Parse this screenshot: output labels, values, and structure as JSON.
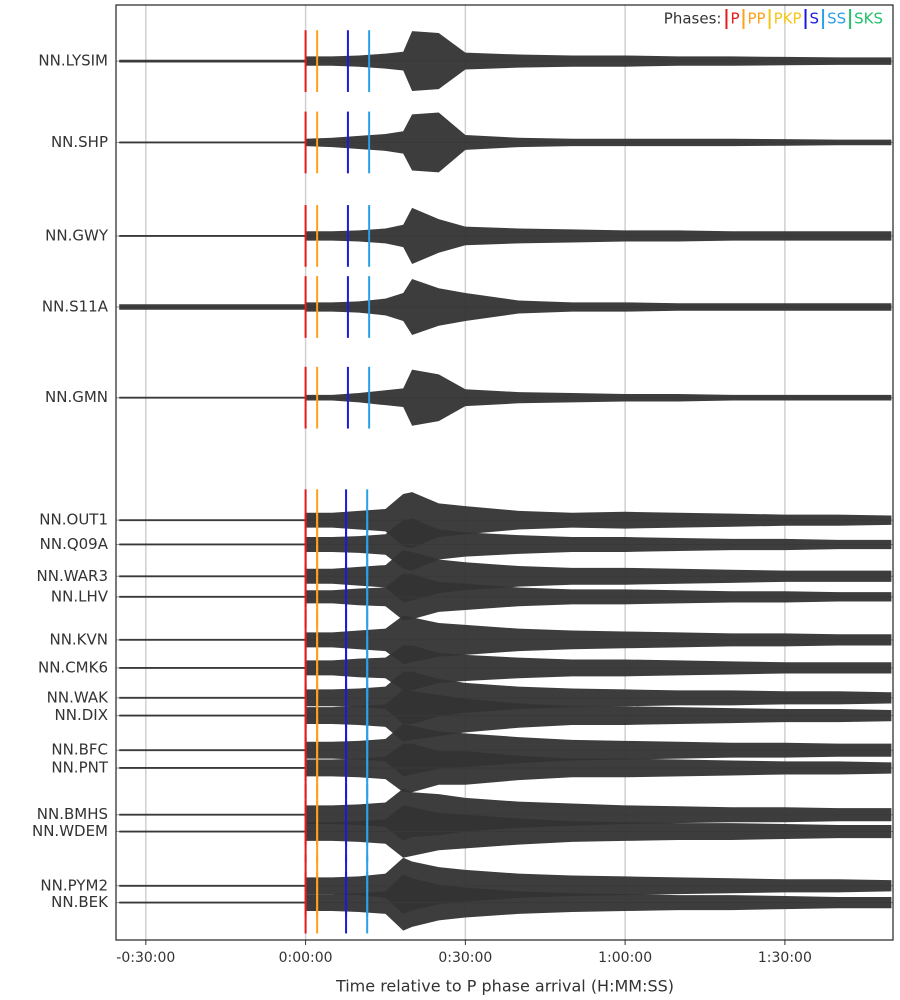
{
  "chart_data": {
    "type": "record-section",
    "xlabel": "Time relative to P phase arrival (H:MM:SS)",
    "xlim": [
      -2136,
      6618
    ],
    "xticks": [
      {
        "value": -1800,
        "label": "-0:30:00"
      },
      {
        "value": 0,
        "label": "0:00:00"
      },
      {
        "value": 1800,
        "label": "0:30:00"
      },
      {
        "value": 3600,
        "label": "1:00:00"
      },
      {
        "value": 5400,
        "label": "1:30:00"
      }
    ],
    "ylim": [
      0,
      100
    ],
    "grid": true,
    "trace_color": "#333333",
    "legend_title": "Phases:",
    "phases": [
      {
        "name": "P",
        "color": "#e41a1c"
      },
      {
        "name": "PP",
        "color": "#ff9f1a"
      },
      {
        "name": "PKP",
        "color": "#f5c518"
      },
      {
        "name": "S",
        "color": "#1a1adb"
      },
      {
        "name": "SS",
        "color": "#2aa0e8"
      },
      {
        "name": "SKS",
        "color": "#22c06a"
      }
    ],
    "x": [
      -2100,
      -10,
      0,
      300,
      600,
      900,
      1100,
      1200,
      1500,
      1800,
      2400,
      3000,
      3600,
      4200,
      4800,
      5400,
      6000,
      6600
    ],
    "stations": [
      {
        "name": "NN.LYSIM",
        "y": 6.0,
        "arrivals": [
          0,
          130,
          null,
          477,
          716,
          null
        ],
        "values": [
          0.15,
          0.15,
          0.5,
          0.5,
          0.6,
          0.8,
          1.0,
          3.2,
          3.0,
          0.9,
          0.7,
          0.6,
          0.6,
          0.5,
          0.5,
          0.45,
          0.4,
          0.4
        ]
      },
      {
        "name": "NN.SHP",
        "y": 14.7,
        "arrivals": [
          0,
          130,
          null,
          477,
          716,
          null
        ],
        "values": [
          0.1,
          0.1,
          0.4,
          0.5,
          0.7,
          0.9,
          1.2,
          3.0,
          3.2,
          0.8,
          0.5,
          0.4,
          0.4,
          0.4,
          0.4,
          0.35,
          0.3,
          0.3
        ]
      },
      {
        "name": "NN.GWY",
        "y": 24.7,
        "arrivals": [
          0,
          130,
          null,
          477,
          716,
          null
        ],
        "values": [
          0.1,
          0.1,
          0.5,
          0.5,
          0.6,
          0.8,
          1.2,
          3.0,
          1.8,
          1.0,
          0.8,
          0.7,
          0.6,
          0.6,
          0.5,
          0.5,
          0.5,
          0.5
        ]
      },
      {
        "name": "NN.S11A",
        "y": 32.3,
        "arrivals": [
          0,
          130,
          null,
          477,
          716,
          null
        ],
        "values": [
          0.3,
          0.3,
          0.5,
          0.5,
          0.6,
          0.9,
          1.5,
          3.0,
          2.0,
          1.5,
          0.7,
          0.5,
          0.5,
          0.4,
          0.4,
          0.4,
          0.4,
          0.4
        ]
      },
      {
        "name": "NN.GMN",
        "y": 42.0,
        "arrivals": [
          0,
          130,
          null,
          477,
          716,
          null
        ],
        "values": [
          0.1,
          0.1,
          0.3,
          0.3,
          0.5,
          0.8,
          1.0,
          3.0,
          2.5,
          0.9,
          0.6,
          0.5,
          0.4,
          0.4,
          0.3,
          0.3,
          0.3,
          0.3
        ]
      },
      {
        "name": "NN.OUT1",
        "y": 55.1,
        "arrivals": [
          0,
          130,
          null,
          456,
          694,
          null
        ],
        "values": [
          0.1,
          0.1,
          0.8,
          0.8,
          1.0,
          1.2,
          2.8,
          3.0,
          1.8,
          1.5,
          1.0,
          0.8,
          0.9,
          0.8,
          0.7,
          0.6,
          0.6,
          0.5
        ]
      },
      {
        "name": "NN.Q09A",
        "y": 57.7,
        "arrivals": [
          0,
          130,
          null,
          456,
          694,
          null
        ],
        "values": [
          0.1,
          0.1,
          0.8,
          0.8,
          0.9,
          1.1,
          2.6,
          2.8,
          1.6,
          1.3,
          1.0,
          0.8,
          0.8,
          0.7,
          0.6,
          0.6,
          0.5,
          0.5
        ]
      },
      {
        "name": "NN.WAR3",
        "y": 61.1,
        "arrivals": [
          0,
          130,
          null,
          456,
          694,
          null
        ],
        "values": [
          0.1,
          0.1,
          0.8,
          0.8,
          1.0,
          1.2,
          2.8,
          2.6,
          1.8,
          1.5,
          1.1,
          0.9,
          0.9,
          0.8,
          0.7,
          0.6,
          0.6,
          0.6
        ]
      },
      {
        "name": "NN.LHV",
        "y": 63.3,
        "arrivals": [
          0,
          130,
          null,
          456,
          694,
          null
        ],
        "values": [
          0.1,
          0.1,
          0.7,
          0.7,
          0.9,
          1.0,
          2.5,
          2.4,
          1.6,
          1.4,
          1.0,
          0.8,
          0.8,
          0.7,
          0.6,
          0.6,
          0.5,
          0.5
        ]
      },
      {
        "name": "NN.KVN",
        "y": 67.9,
        "arrivals": [
          0,
          130,
          null,
          456,
          694,
          null
        ],
        "values": [
          0.1,
          0.1,
          0.8,
          0.8,
          1.0,
          1.2,
          2.6,
          2.4,
          1.8,
          1.6,
          1.2,
          1.0,
          0.9,
          0.8,
          0.7,
          0.7,
          0.6,
          0.6
        ]
      },
      {
        "name": "NN.CMK6",
        "y": 70.9,
        "arrivals": [
          0,
          130,
          null,
          456,
          694,
          null
        ],
        "values": [
          0.1,
          0.1,
          0.8,
          0.8,
          1.0,
          1.1,
          2.4,
          2.4,
          1.6,
          1.4,
          1.1,
          0.9,
          0.9,
          0.8,
          0.7,
          0.6,
          0.6,
          0.6
        ]
      },
      {
        "name": "NN.WAK",
        "y": 74.1,
        "arrivals": [
          0,
          130,
          null,
          456,
          694,
          null
        ],
        "values": [
          0.1,
          0.1,
          0.9,
          0.9,
          1.0,
          1.2,
          2.8,
          2.8,
          2.0,
          1.6,
          1.2,
          1.0,
          0.9,
          0.8,
          0.8,
          0.7,
          0.7,
          0.6
        ]
      },
      {
        "name": "NN.DIX",
        "y": 76.0,
        "arrivals": [
          0,
          130,
          null,
          456,
          694,
          null
        ],
        "values": [
          0.1,
          0.1,
          0.9,
          0.9,
          1.0,
          1.2,
          2.8,
          2.6,
          2.2,
          1.8,
          1.3,
          1.0,
          1.0,
          0.9,
          0.8,
          0.7,
          0.7,
          0.6
        ]
      },
      {
        "name": "NN.BFC",
        "y": 79.7,
        "arrivals": [
          0,
          130,
          null,
          456,
          694,
          null
        ],
        "values": [
          0.1,
          0.1,
          0.9,
          0.9,
          1.0,
          1.2,
          2.8,
          2.6,
          2.0,
          1.8,
          1.4,
          1.1,
          1.0,
          0.9,
          0.8,
          0.8,
          0.7,
          0.7
        ]
      },
      {
        "name": "NN.PNT",
        "y": 81.6,
        "arrivals": [
          0,
          130,
          null,
          456,
          694,
          null
        ],
        "values": [
          0.1,
          0.1,
          0.9,
          0.9,
          1.0,
          1.2,
          2.6,
          2.6,
          1.8,
          1.8,
          1.3,
          1.0,
          1.0,
          0.9,
          0.8,
          0.7,
          0.7,
          0.6
        ]
      },
      {
        "name": "NN.BMHS",
        "y": 86.6,
        "arrivals": [
          0,
          130,
          null,
          456,
          694,
          null
        ],
        "values": [
          0.1,
          0.1,
          1.0,
          1.0,
          1.1,
          1.3,
          2.8,
          2.4,
          2.2,
          1.8,
          1.4,
          1.2,
          1.0,
          0.9,
          0.8,
          0.8,
          0.7,
          0.7
        ]
      },
      {
        "name": "NN.WDEM",
        "y": 88.4,
        "arrivals": [
          0,
          130,
          null,
          456,
          694,
          null
        ],
        "values": [
          0.1,
          0.1,
          1.0,
          1.0,
          1.1,
          1.3,
          2.8,
          2.6,
          2.0,
          1.8,
          1.4,
          1.1,
          1.0,
          0.9,
          0.9,
          0.8,
          0.7,
          0.7
        ]
      },
      {
        "name": "NN.PYM2",
        "y": 94.2,
        "arrivals": [
          0,
          130,
          null,
          456,
          694,
          null
        ],
        "values": [
          0.1,
          0.1,
          0.9,
          0.9,
          1.0,
          1.3,
          3.0,
          2.6,
          2.0,
          1.7,
          1.3,
          1.1,
          1.0,
          0.9,
          0.8,
          0.7,
          0.7,
          0.6
        ]
      },
      {
        "name": "NN.BEK",
        "y": 96.0,
        "arrivals": [
          0,
          130,
          null,
          456,
          694,
          null
        ],
        "values": [
          0.1,
          0.1,
          0.9,
          0.9,
          1.0,
          1.2,
          3.0,
          2.6,
          1.9,
          1.6,
          1.2,
          1.0,
          0.9,
          0.8,
          0.8,
          0.7,
          0.6,
          0.6
        ]
      }
    ]
  }
}
